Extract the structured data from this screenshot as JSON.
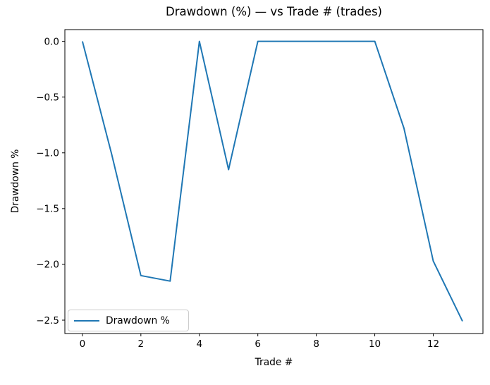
{
  "figure": {
    "title": "Drawdown (%) — vs Trade # (trades)",
    "xlabel": "Trade #",
    "ylabel": "Drawdown %",
    "legend": {
      "label": "Drawdown %"
    }
  },
  "chart_data": {
    "type": "line",
    "title": "Drawdown (%) — vs Trade # (trades)",
    "xlabel": "Trade #",
    "ylabel": "Drawdown %",
    "series": [
      {
        "name": "Drawdown %",
        "color": "#1f77b4",
        "x": [
          0,
          1,
          2,
          3,
          4,
          5,
          6,
          7,
          8,
          9,
          10,
          11,
          12,
          13
        ],
        "y": [
          0.0,
          -1.01,
          -2.1,
          -2.15,
          0.0,
          -1.15,
          0.0,
          0.0,
          0.0,
          0.0,
          0.0,
          -0.78,
          -1.97,
          -2.51
        ]
      }
    ],
    "x_ticks": {
      "values": [
        0,
        2,
        4,
        6,
        8,
        10,
        12
      ],
      "labels": [
        "0",
        "2",
        "4",
        "6",
        "8",
        "10",
        "12"
      ]
    },
    "y_ticks": {
      "values": [
        0,
        -0.5,
        -1,
        -1.5,
        -2,
        -2.5
      ],
      "labels": [
        "0.0",
        "−0.5",
        "−1.0",
        "−1.5",
        "−2.0",
        "−2.5"
      ]
    },
    "xlim": [
      -0.6,
      13.7
    ],
    "ylim": [
      -2.62,
      0.105
    ],
    "grid": false,
    "legend": {
      "label": "Drawdown %",
      "position": "lower-left"
    },
    "axes_color": "#000000",
    "background": "#ffffff"
  }
}
